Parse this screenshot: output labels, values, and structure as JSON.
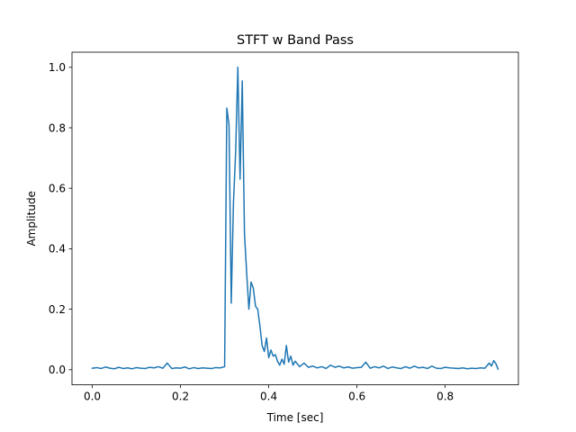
{
  "chart_data": {
    "type": "line",
    "title": "STFT w Band Pass",
    "xlabel": "Time [sec]",
    "ylabel": "Amplitude",
    "xlim": [
      -0.046,
      0.966
    ],
    "ylim": [
      -0.05,
      1.05
    ],
    "xticks": [
      0.0,
      0.2,
      0.4,
      0.6,
      0.8
    ],
    "xtick_labels": [
      "0.0",
      "0.2",
      "0.4",
      "0.6",
      "0.8"
    ],
    "yticks": [
      0.0,
      0.2,
      0.4,
      0.6,
      0.8,
      1.0
    ],
    "ytick_labels": [
      "0.0",
      "0.2",
      "0.4",
      "0.6",
      "0.8",
      "1.0"
    ],
    "grid": false,
    "legend": "none",
    "series": [
      {
        "color": "#1f77b4",
        "x": [
          0.0,
          0.01,
          0.02,
          0.03,
          0.04,
          0.05,
          0.06,
          0.07,
          0.08,
          0.09,
          0.1,
          0.11,
          0.12,
          0.13,
          0.14,
          0.15,
          0.16,
          0.17,
          0.18,
          0.19,
          0.2,
          0.21,
          0.22,
          0.23,
          0.24,
          0.25,
          0.26,
          0.27,
          0.28,
          0.29,
          0.3,
          0.305,
          0.31,
          0.315,
          0.32,
          0.325,
          0.33,
          0.335,
          0.34,
          0.345,
          0.35,
          0.355,
          0.36,
          0.365,
          0.37,
          0.375,
          0.38,
          0.385,
          0.39,
          0.395,
          0.4,
          0.405,
          0.41,
          0.415,
          0.42,
          0.425,
          0.43,
          0.435,
          0.44,
          0.445,
          0.45,
          0.455,
          0.46,
          0.47,
          0.48,
          0.49,
          0.5,
          0.51,
          0.52,
          0.53,
          0.54,
          0.55,
          0.56,
          0.57,
          0.58,
          0.59,
          0.6,
          0.61,
          0.62,
          0.63,
          0.64,
          0.65,
          0.66,
          0.67,
          0.68,
          0.69,
          0.7,
          0.71,
          0.72,
          0.73,
          0.74,
          0.75,
          0.76,
          0.77,
          0.78,
          0.79,
          0.8,
          0.81,
          0.82,
          0.83,
          0.84,
          0.85,
          0.86,
          0.87,
          0.88,
          0.89,
          0.9,
          0.905,
          0.91,
          0.915,
          0.92
        ],
        "y": [
          0.005,
          0.007,
          0.004,
          0.009,
          0.005,
          0.003,
          0.008,
          0.004,
          0.006,
          0.003,
          0.007,
          0.005,
          0.004,
          0.008,
          0.006,
          0.01,
          0.005,
          0.022,
          0.004,
          0.006,
          0.005,
          0.009,
          0.003,
          0.007,
          0.004,
          0.006,
          0.005,
          0.004,
          0.007,
          0.006,
          0.01,
          0.865,
          0.81,
          0.22,
          0.55,
          0.72,
          1.0,
          0.63,
          0.955,
          0.45,
          0.32,
          0.2,
          0.29,
          0.27,
          0.21,
          0.2,
          0.145,
          0.08,
          0.06,
          0.105,
          0.04,
          0.065,
          0.045,
          0.05,
          0.028,
          0.015,
          0.035,
          0.018,
          0.08,
          0.025,
          0.045,
          0.015,
          0.028,
          0.01,
          0.022,
          0.008,
          0.012,
          0.006,
          0.01,
          0.004,
          0.015,
          0.008,
          0.012,
          0.006,
          0.009,
          0.005,
          0.007,
          0.008,
          0.025,
          0.005,
          0.01,
          0.006,
          0.012,
          0.004,
          0.009,
          0.006,
          0.004,
          0.01,
          0.005,
          0.012,
          0.006,
          0.008,
          0.004,
          0.012,
          0.005,
          0.004,
          0.008,
          0.006,
          0.005,
          0.004,
          0.006,
          0.003,
          0.005,
          0.004,
          0.006,
          0.005,
          0.022,
          0.012,
          0.03,
          0.02,
          0.002
        ]
      }
    ]
  }
}
